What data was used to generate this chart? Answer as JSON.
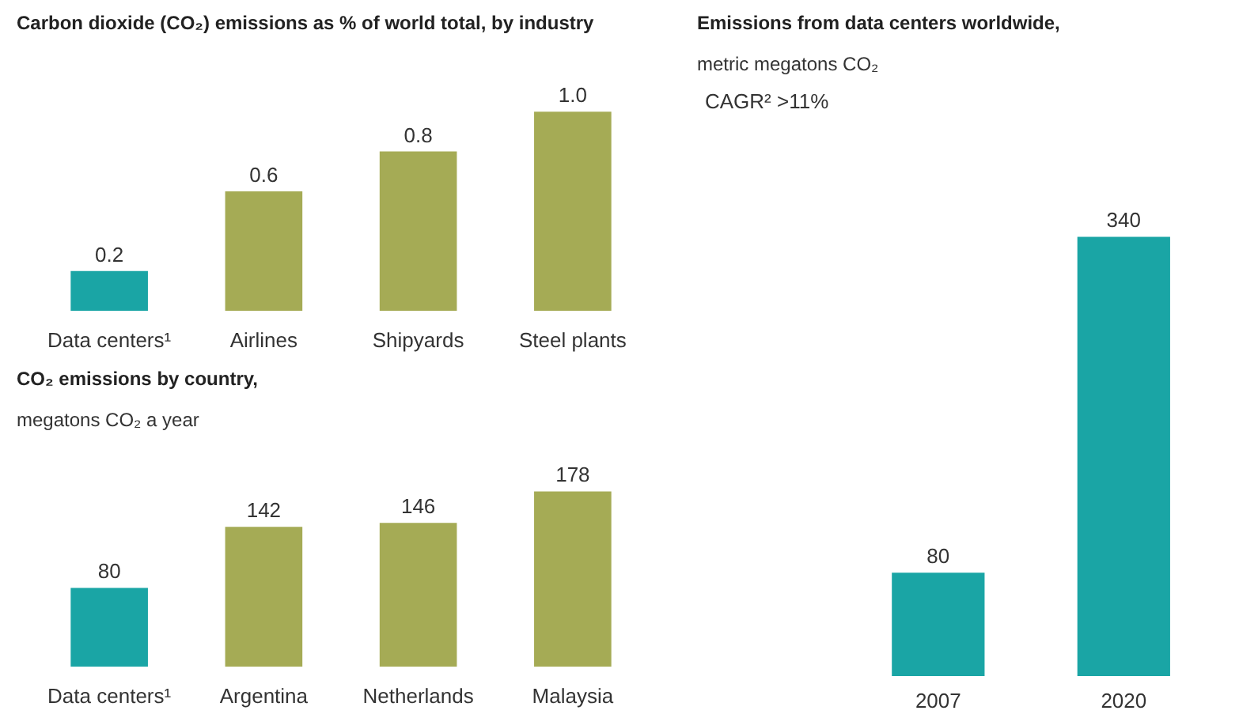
{
  "chart_data": [
    {
      "type": "bar",
      "title": "Carbon dioxide (CO₂) emissions as % of world total, by industry",
      "categories": [
        "Data centers¹",
        "Airlines",
        "Shipyards",
        "Steel plants"
      ],
      "values": [
        0.2,
        0.6,
        0.8,
        1.0
      ],
      "value_labels": [
        "0.2",
        "0.6",
        "0.8",
        "1.0"
      ],
      "colors": [
        "#1aa5a5",
        "#a5ab55",
        "#a5ab55",
        "#a5ab55"
      ]
    },
    {
      "type": "bar",
      "title": "CO₂ emissions by country,",
      "subtitle": "megatons CO₂ a year",
      "categories": [
        "Data centers¹",
        "Argentina",
        "Netherlands",
        "Malaysia"
      ],
      "values": [
        80,
        142,
        146,
        178
      ],
      "data_labels": true,
      "colors": [
        "#1aa5a5",
        "#a5ab55",
        "#a5ab55",
        "#a5ab55"
      ]
    },
    {
      "type": "bar",
      "title": "Emissions from data centers worldwide,",
      "subtitle": "metric megatons CO₂",
      "annotations": [
        "CAGR² >11%"
      ],
      "categories": [
        "2007",
        "2020"
      ],
      "values": [
        80,
        340
      ],
      "data_labels": true,
      "colors": [
        "#1aa5a5",
        "#1aa5a5"
      ]
    }
  ]
}
